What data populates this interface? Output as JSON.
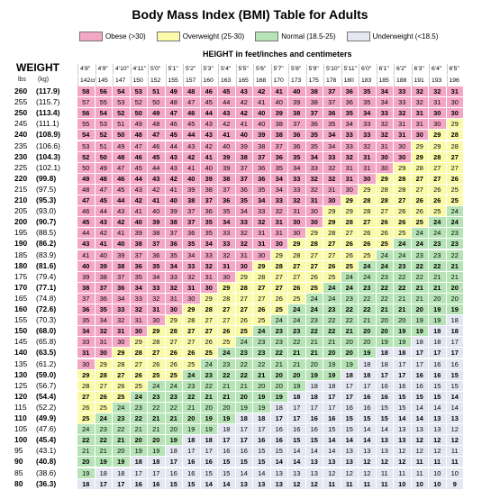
{
  "title": "Body Mass Index (BMI) Table for Adults",
  "legend": [
    {
      "label": "Obese (>30)",
      "color": "#f4a7c4"
    },
    {
      "label": "Overweight (25-30)",
      "color": "#fafaa9"
    },
    {
      "label": "Normal (18.5-25)",
      "color": "#b6e4b6"
    },
    {
      "label": "Underweight (<18.5)",
      "color": "#e4e6f2"
    }
  ],
  "weight_label": "WEIGHT",
  "lbs_unit": "lbs",
  "kg_unit": "(kg)",
  "height_label": "HEIGHT in feet/inches and centimeters",
  "chart_data": {
    "type": "table",
    "title": "Body Mass Index (BMI) Table for Adults",
    "xlabel": "HEIGHT in feet/inches and centimeters",
    "ylabel": "WEIGHT",
    "heights_ft": [
      "4'8\"",
      "4'9\"",
      "4'10\"",
      "4'11\"",
      "5'0\"",
      "5'1\"",
      "5'2\"",
      "5'3\"",
      "5'4\"",
      "5'5\"",
      "5'6\"",
      "5'7\"",
      "5'8\"",
      "5'9\"",
      "5'10\"",
      "5'11\"",
      "6'0\"",
      "6'1\"",
      "6'2\"",
      "6'3\"",
      "6'4\"",
      "6'5\""
    ],
    "heights_cm": [
      "142cm",
      "145",
      "147",
      "150",
      "152",
      "155",
      "157",
      "160",
      "163",
      "165",
      "168",
      "170",
      "173",
      "175",
      "178",
      "180",
      "183",
      "185",
      "188",
      "191",
      "193",
      "196"
    ],
    "weights_lbs": [
      260,
      255,
      250,
      245,
      240,
      235,
      230,
      225,
      220,
      215,
      210,
      205,
      200,
      195,
      190,
      185,
      180,
      175,
      170,
      165,
      160,
      155,
      150,
      145,
      140,
      135,
      130,
      125,
      120,
      115,
      110,
      105,
      100,
      95,
      90,
      85,
      80
    ],
    "weights_kg": [
      "(117.9)",
      "(115.7)",
      "(113.4)",
      "(111.1)",
      "(108.9)",
      "(106.6)",
      "(104.3)",
      "(102.1)",
      "(99.8)",
      "(97.5)",
      "(95.3)",
      "(93.0)",
      "(90.7)",
      "(88.5)",
      "(86.2)",
      "(83.9)",
      "(81.6)",
      "(79.4)",
      "(77.1)",
      "(74.8)",
      "(72.6)",
      "(70.3)",
      "(68.0)",
      "(65.8)",
      "(63.5)",
      "(61.2)",
      "(59.0)",
      "(56.7)",
      "(54.4)",
      "(52.2)",
      "(49.9)",
      "(47.6)",
      "(45.4)",
      "(43.1)",
      "(40.8)",
      "(38.6)",
      "(36.3)"
    ],
    "values": [
      [
        58,
        56,
        54,
        53,
        51,
        49,
        48,
        46,
        45,
        43,
        42,
        41,
        40,
        38,
        37,
        36,
        35,
        34,
        33,
        32,
        32,
        31
      ],
      [
        57,
        55,
        53,
        52,
        50,
        48,
        47,
        45,
        44,
        42,
        41,
        40,
        39,
        38,
        37,
        36,
        35,
        34,
        33,
        32,
        31,
        30
      ],
      [
        56,
        54,
        52,
        50,
        49,
        47,
        46,
        44,
        43,
        42,
        40,
        39,
        38,
        37,
        36,
        35,
        34,
        33,
        32,
        31,
        30,
        30
      ],
      [
        55,
        53,
        51,
        49,
        48,
        46,
        45,
        43,
        42,
        41,
        40,
        38,
        37,
        36,
        35,
        34,
        33,
        32,
        31,
        31,
        30,
        29
      ],
      [
        54,
        52,
        50,
        48,
        47,
        45,
        44,
        43,
        41,
        40,
        39,
        38,
        36,
        35,
        34,
        33,
        33,
        32,
        31,
        30,
        29,
        28
      ],
      [
        53,
        51,
        49,
        47,
        46,
        44,
        43,
        42,
        40,
        39,
        38,
        37,
        36,
        35,
        34,
        33,
        32,
        31,
        30,
        29,
        29,
        28
      ],
      [
        52,
        50,
        48,
        46,
        45,
        43,
        42,
        41,
        39,
        38,
        37,
        36,
        35,
        34,
        33,
        32,
        31,
        30,
        30,
        29,
        28,
        27
      ],
      [
        50,
        49,
        47,
        45,
        44,
        43,
        41,
        40,
        39,
        37,
        36,
        35,
        34,
        33,
        32,
        31,
        31,
        30,
        29,
        28,
        27,
        27
      ],
      [
        49,
        48,
        46,
        44,
        43,
        42,
        40,
        39,
        38,
        37,
        36,
        34,
        33,
        32,
        32,
        31,
        30,
        29,
        28,
        27,
        27,
        26
      ],
      [
        48,
        47,
        45,
        43,
        42,
        41,
        39,
        38,
        37,
        36,
        35,
        34,
        33,
        32,
        31,
        30,
        29,
        28,
        28,
        27,
        26,
        25
      ],
      [
        47,
        45,
        44,
        42,
        41,
        40,
        38,
        37,
        36,
        35,
        34,
        33,
        32,
        31,
        30,
        29,
        28,
        28,
        27,
        26,
        26,
        25
      ],
      [
        46,
        44,
        43,
        41,
        40,
        39,
        37,
        36,
        35,
        34,
        33,
        32,
        31,
        30,
        29,
        29,
        28,
        27,
        26,
        26,
        25,
        24
      ],
      [
        45,
        43,
        42,
        40,
        39,
        38,
        37,
        35,
        34,
        33,
        32,
        31,
        30,
        30,
        29,
        28,
        27,
        26,
        26,
        25,
        24,
        24
      ],
      [
        44,
        42,
        41,
        39,
        38,
        37,
        36,
        35,
        33,
        32,
        31,
        31,
        30,
        29,
        28,
        27,
        26,
        26,
        25,
        24,
        24,
        23
      ],
      [
        43,
        41,
        40,
        38,
        37,
        36,
        35,
        34,
        33,
        32,
        31,
        30,
        29,
        28,
        27,
        26,
        26,
        25,
        24,
        24,
        23,
        23
      ],
      [
        41,
        40,
        39,
        37,
        36,
        35,
        34,
        33,
        32,
        31,
        30,
        29,
        28,
        27,
        27,
        26,
        25,
        24,
        24,
        23,
        23,
        22
      ],
      [
        40,
        39,
        38,
        36,
        35,
        34,
        33,
        32,
        31,
        30,
        29,
        28,
        27,
        27,
        26,
        25,
        24,
        24,
        23,
        22,
        22,
        21
      ],
      [
        39,
        38,
        37,
        35,
        34,
        33,
        32,
        31,
        30,
        29,
        28,
        27,
        27,
        26,
        25,
        24,
        24,
        23,
        22,
        22,
        21,
        21
      ],
      [
        38,
        37,
        36,
        34,
        33,
        32,
        31,
        30,
        29,
        28,
        27,
        27,
        26,
        25,
        24,
        24,
        23,
        22,
        22,
        21,
        21,
        20
      ],
      [
        37,
        36,
        34,
        33,
        32,
        31,
        30,
        29,
        28,
        27,
        27,
        26,
        25,
        24,
        24,
        23,
        22,
        22,
        21,
        21,
        20,
        20
      ],
      [
        36,
        35,
        33,
        32,
        31,
        30,
        29,
        28,
        27,
        27,
        26,
        25,
        24,
        24,
        23,
        22,
        22,
        21,
        21,
        20,
        19,
        19
      ],
      [
        35,
        34,
        32,
        31,
        30,
        29,
        28,
        27,
        27,
        26,
        25,
        24,
        24,
        23,
        22,
        22,
        21,
        20,
        20,
        19,
        19,
        18
      ],
      [
        34,
        32,
        31,
        30,
        29,
        28,
        27,
        27,
        26,
        25,
        24,
        23,
        23,
        22,
        22,
        21,
        20,
        20,
        19,
        19,
        18,
        18
      ],
      [
        33,
        31,
        30,
        29,
        28,
        27,
        27,
        26,
        25,
        24,
        23,
        23,
        22,
        21,
        21,
        20,
        20,
        19,
        19,
        18,
        18,
        17
      ],
      [
        31,
        30,
        29,
        28,
        27,
        26,
        26,
        25,
        24,
        23,
        23,
        22,
        21,
        21,
        20,
        20,
        19,
        18,
        18,
        17,
        17,
        17
      ],
      [
        30,
        29,
        28,
        27,
        26,
        26,
        25,
        24,
        23,
        22,
        22,
        21,
        21,
        20,
        19,
        19,
        18,
        18,
        17,
        17,
        16,
        16
      ],
      [
        29,
        28,
        27,
        26,
        25,
        25,
        24,
        23,
        22,
        22,
        21,
        20,
        20,
        19,
        19,
        18,
        18,
        17,
        17,
        16,
        16,
        15
      ],
      [
        28,
        27,
        26,
        25,
        24,
        24,
        23,
        22,
        21,
        21,
        20,
        20,
        19,
        18,
        18,
        17,
        17,
        16,
        16,
        16,
        15,
        15
      ],
      [
        27,
        26,
        25,
        24,
        23,
        23,
        22,
        21,
        21,
        20,
        19,
        19,
        18,
        18,
        17,
        17,
        16,
        16,
        15,
        15,
        15,
        14
      ],
      [
        26,
        25,
        24,
        23,
        22,
        22,
        21,
        20,
        20,
        19,
        19,
        18,
        17,
        17,
        17,
        16,
        16,
        15,
        15,
        14,
        14,
        14
      ],
      [
        25,
        24,
        23,
        22,
        21,
        21,
        20,
        19,
        19,
        18,
        18,
        17,
        17,
        16,
        16,
        15,
        15,
        15,
        14,
        14,
        13,
        13
      ],
      [
        24,
        23,
        22,
        21,
        21,
        20,
        19,
        19,
        18,
        17,
        17,
        16,
        16,
        16,
        15,
        15,
        14,
        14,
        13,
        13,
        13,
        12
      ],
      [
        22,
        22,
        21,
        20,
        20,
        19,
        18,
        18,
        17,
        17,
        16,
        16,
        15,
        15,
        14,
        14,
        14,
        13,
        13,
        12,
        12,
        12
      ],
      [
        21,
        21,
        20,
        19,
        19,
        18,
        17,
        17,
        16,
        16,
        15,
        15,
        14,
        14,
        14,
        13,
        13,
        13,
        12,
        12,
        12,
        11
      ],
      [
        20,
        19,
        19,
        18,
        18,
        17,
        16,
        16,
        15,
        15,
        15,
        14,
        14,
        13,
        13,
        13,
        12,
        12,
        12,
        11,
        11,
        11
      ],
      [
        19,
        18,
        18,
        17,
        17,
        16,
        16,
        15,
        15,
        14,
        14,
        13,
        13,
        13,
        12,
        12,
        12,
        11,
        11,
        11,
        10,
        10
      ],
      [
        18,
        17,
        17,
        16,
        16,
        15,
        15,
        14,
        14,
        13,
        13,
        13,
        12,
        12,
        11,
        11,
        11,
        11,
        10,
        10,
        10,
        9
      ]
    ]
  }
}
